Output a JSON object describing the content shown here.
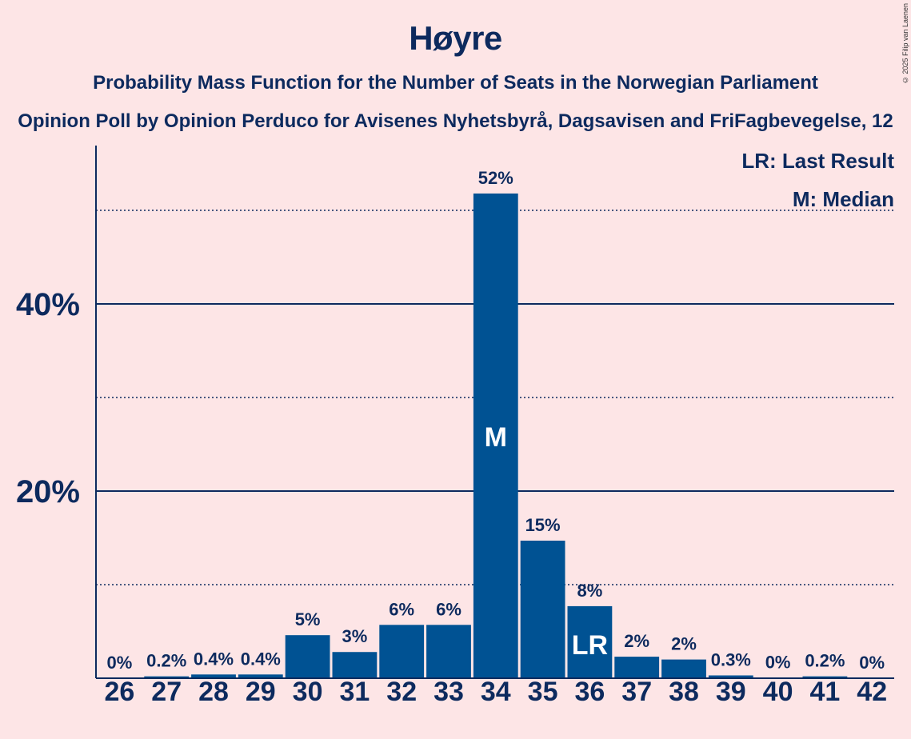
{
  "colors": {
    "background": "#fde5e6",
    "bar": "#005293",
    "text": "#0d2a5e"
  },
  "chart_data": {
    "type": "bar",
    "title": "Høyre",
    "subtitle": "Probability Mass Function for the Number of Seats in the Norwegian Parliament",
    "subtitle2": "Opinion Poll by Opinion Perduco for Avisenes Nyhetsbyrå, Dagsavisen and FriFagbevegelse, 12",
    "copyright": "© 2025 Filip van Laenen",
    "categories": [
      "26",
      "27",
      "28",
      "29",
      "30",
      "31",
      "32",
      "33",
      "34",
      "35",
      "36",
      "37",
      "38",
      "39",
      "40",
      "41",
      "42"
    ],
    "values": [
      0,
      0.2,
      0.4,
      0.4,
      4.6,
      2.8,
      5.7,
      5.7,
      51.8,
      14.7,
      7.7,
      2.3,
      2.0,
      0.3,
      0.05,
      0.2,
      0
    ],
    "labels": [
      "0%",
      "0.2%",
      "0.4%",
      "0.4%",
      "5%",
      "3%",
      "6%",
      "6%",
      "52%",
      "15%",
      "8%",
      "2%",
      "2%",
      "0.3%",
      "0%",
      "0.2%",
      "0%"
    ],
    "yticks": [
      20,
      40
    ],
    "ytick_labels": [
      "20%",
      "40%"
    ],
    "dotted_gridlines": [
      10,
      30,
      50
    ],
    "ylim": [
      0,
      57
    ],
    "markers": {
      "median": {
        "category": "34",
        "label": "M"
      },
      "last_result": {
        "category": "36",
        "label": "LR"
      }
    },
    "legend": {
      "last_result": "LR: Last Result",
      "median": "M: Median",
      "position": "top-right"
    }
  }
}
